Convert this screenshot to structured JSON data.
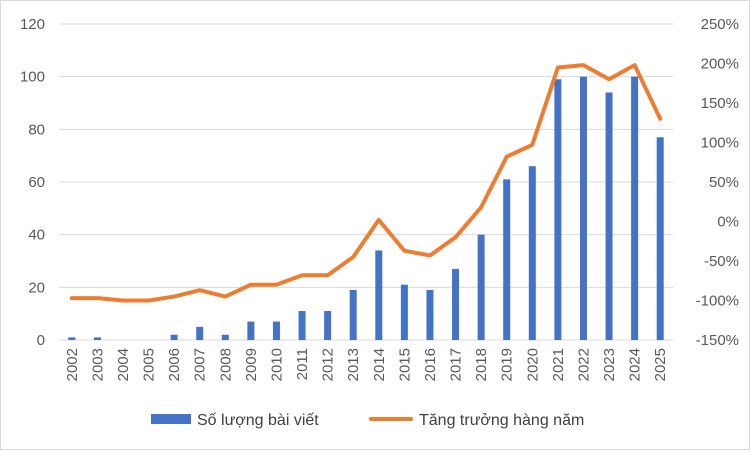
{
  "chart_data": {
    "type": "bar+line",
    "title": "",
    "categories": [
      "2002",
      "2003",
      "2004",
      "2005",
      "2006",
      "2007",
      "2008",
      "2009",
      "2010",
      "2011",
      "2012",
      "2013",
      "2014",
      "2015",
      "2016",
      "2017",
      "2018",
      "2019",
      "2020",
      "2021",
      "2022",
      "2023",
      "2024",
      "2025"
    ],
    "series": [
      {
        "name": "Số lượng bài viết",
        "type": "bar",
        "axis": "left",
        "color": "#4472c4",
        "values": [
          1,
          1,
          0,
          0,
          2,
          5,
          2,
          7,
          7,
          11,
          11,
          19,
          34,
          21,
          19,
          27,
          40,
          61,
          66,
          99,
          100,
          94,
          100,
          77
        ]
      },
      {
        "name": "Tăng trưởng hàng năm",
        "type": "line",
        "axis": "right",
        "color": "#ed7d31",
        "values": [
          -97,
          -97,
          -100,
          -100,
          -95,
          -87,
          -95,
          -80,
          -80,
          -68,
          -68,
          -45,
          2,
          -37,
          -43,
          -20,
          18,
          82,
          97,
          195,
          198,
          180,
          198,
          130
        ]
      }
    ],
    "y_left": {
      "min": 0,
      "max": 120,
      "ticks": [
        0,
        20,
        40,
        60,
        80,
        100,
        120
      ]
    },
    "y_right": {
      "min": -150,
      "max": 250,
      "ticks": [
        -150,
        -100,
        -50,
        0,
        50,
        100,
        150,
        200,
        250
      ],
      "format": "percent"
    },
    "grid": "horizontal",
    "legend": "bottom-center",
    "legend_entries": [
      "Số lượng bài viết",
      "Tăng trưởng hàng năm"
    ]
  }
}
